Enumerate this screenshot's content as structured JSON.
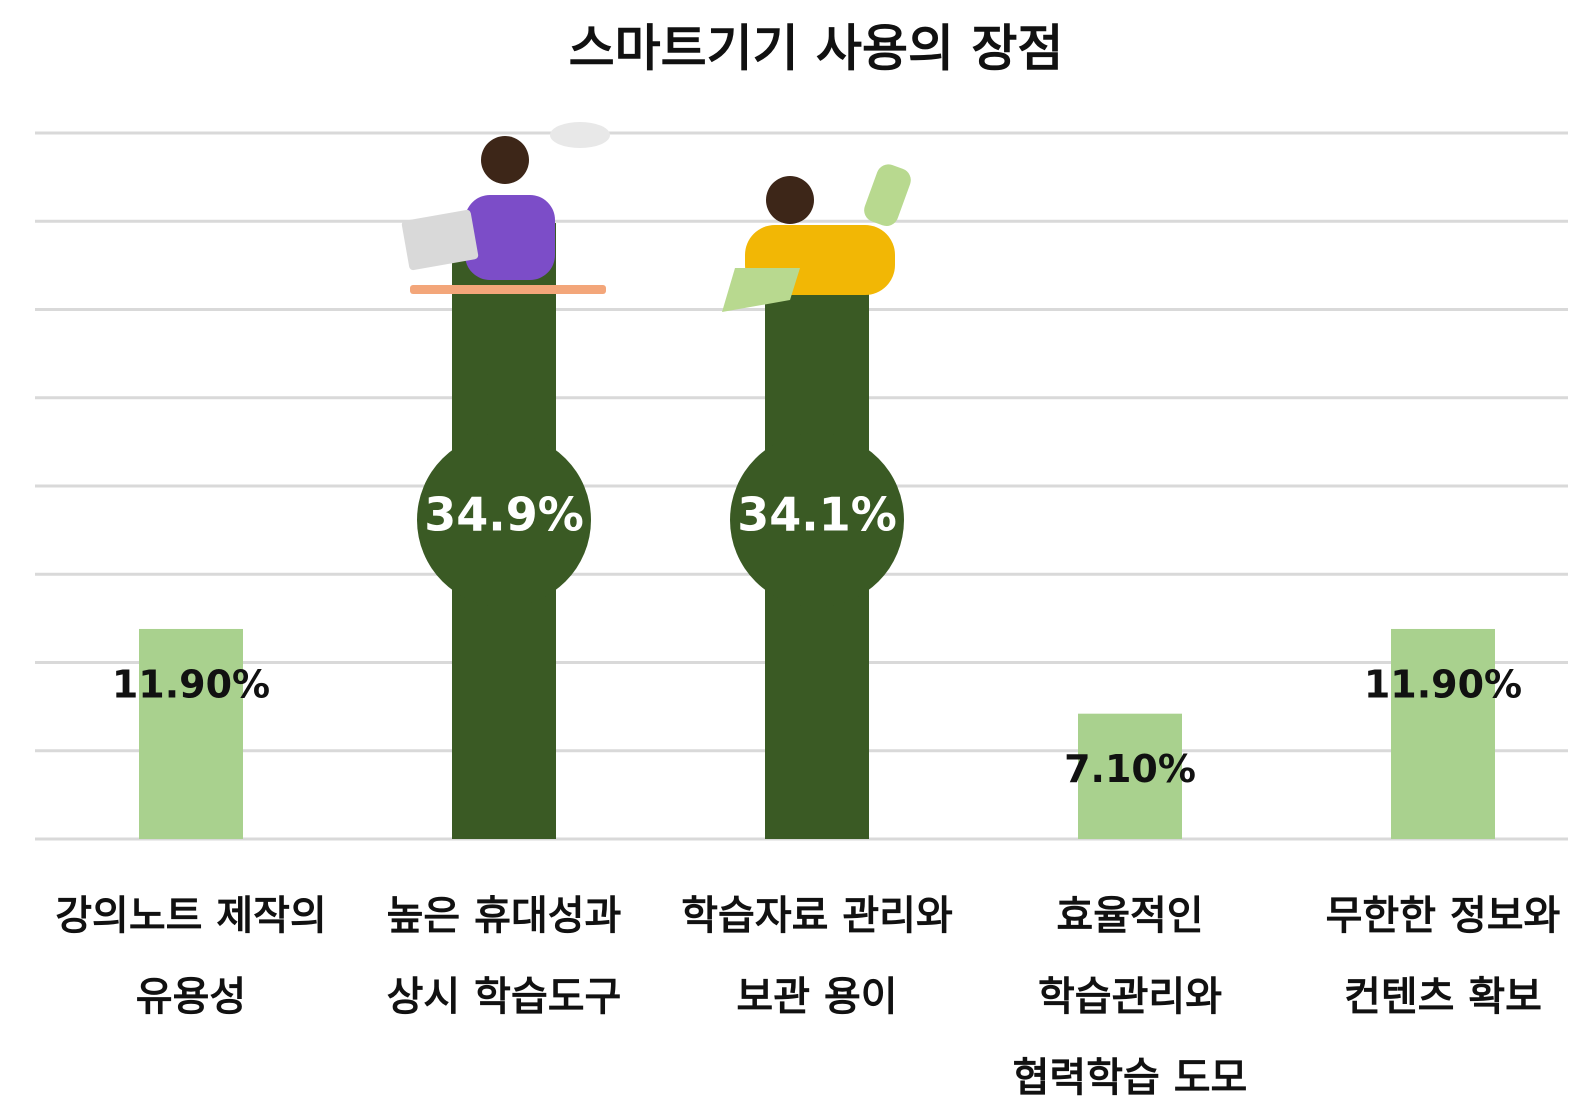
{
  "chart_data": {
    "type": "bar",
    "title": "스마트기기 사용의 장점",
    "categories": [
      [
        "강의노트 제작의",
        "유용성"
      ],
      [
        "높은 휴대성과",
        "상시 학습도구"
      ],
      [
        "학습자료 관리와",
        "보관 용이"
      ],
      [
        "효율적인",
        "학습관리와",
        "협력학습 도모"
      ],
      [
        "무한한 정보와",
        "컨텐츠 확보"
      ]
    ],
    "values": [
      11.9,
      34.9,
      34.1,
      7.1,
      11.9
    ],
    "value_labels": [
      "11.90%",
      "34.9%",
      "34.1%",
      "7.10%",
      "11.90%"
    ],
    "colors": [
      "#a9d18e",
      "#3a5a24",
      "#3a5a24",
      "#a9d18e",
      "#a9d18e"
    ],
    "ylim": [
      0,
      40
    ],
    "yticks": [
      0,
      5,
      10,
      15,
      20,
      25,
      30,
      35,
      40
    ],
    "grid": true
  }
}
